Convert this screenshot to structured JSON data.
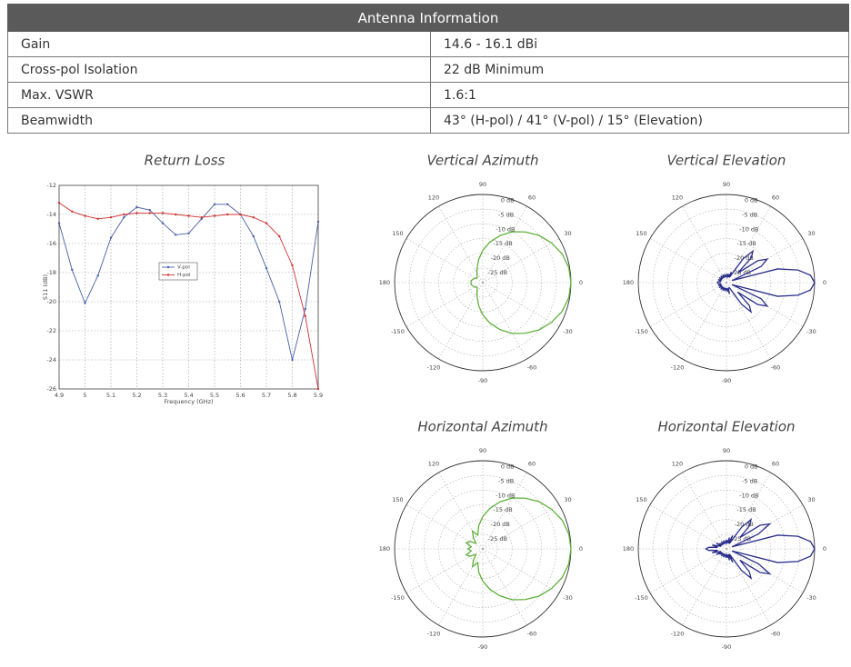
{
  "table": {
    "title": "Antenna Information",
    "rows": [
      [
        "Gain",
        "14.6 - 16.1 dBi"
      ],
      [
        "Cross-pol Isolation",
        "22 dB Minimum"
      ],
      [
        "Max. VSWR",
        "1.6:1"
      ],
      [
        "Beamwidth",
        "43° (H-pol) / 41° (V-pol) / 15° (Elevation)"
      ]
    ]
  },
  "chart_data": [
    {
      "type": "line",
      "title": "Return Loss",
      "x_label": "Frequency (GHz)",
      "y_label": "S11 (dB)",
      "x": [
        4.9,
        4.95,
        5,
        5.05,
        5.1,
        5.15,
        5.2,
        5.25,
        5.3,
        5.35,
        5.4,
        5.45,
        5.5,
        5.55,
        5.6,
        5.65,
        5.7,
        5.75,
        5.8,
        5.85,
        5.9
      ],
      "series": [
        {
          "name": "V-pol",
          "color": "#4a5fa8",
          "values": [
            -14.6,
            -17.8,
            -20.1,
            -18.2,
            -15.6,
            -14.2,
            -13.5,
            -13.7,
            -14.6,
            -15.4,
            -15.3,
            -14.3,
            -13.3,
            -13.3,
            -14.0,
            -15.5,
            -17.7,
            -20.0,
            -24.0,
            -20.5,
            -14.5
          ]
        },
        {
          "name": "H-pol",
          "color": "#d03030",
          "values": [
            -13.2,
            -13.8,
            -14.1,
            -14.3,
            -14.2,
            -14.0,
            -13.9,
            -13.9,
            -13.9,
            -14.0,
            -14.1,
            -14.2,
            -14.1,
            -14.0,
            -14.0,
            -14.2,
            -14.6,
            -15.5,
            -17.5,
            -21.0,
            -26.0
          ]
        }
      ],
      "xlim": [
        4.9,
        5.9
      ],
      "xticks": [
        4.9,
        5,
        5.1,
        5.2,
        5.3,
        5.4,
        5.5,
        5.6,
        5.7,
        5.8,
        5.9
      ],
      "ylim": [
        -26,
        -12
      ],
      "yticks": [
        -12,
        -14,
        -16,
        -18,
        -20,
        -22,
        -24,
        -26
      ],
      "grid": true
    },
    {
      "type": "polar",
      "title": "Vertical Azimuth",
      "color": "#5fb03a",
      "theta": [
        0,
        10,
        20,
        30,
        40,
        50,
        60,
        70,
        80,
        90,
        100,
        110,
        120,
        130,
        140,
        150,
        160,
        170,
        180,
        190,
        200,
        210,
        220,
        230,
        240,
        250,
        260,
        270,
        280,
        290,
        300,
        310,
        320,
        330,
        340,
        350
      ],
      "values": [
        0,
        -0.3,
        -1.3,
        -3,
        -5,
        -7.5,
        -10,
        -13,
        -16,
        -19,
        -22,
        -24.5,
        -26,
        -27,
        -27.5,
        -27,
        -26.5,
        -26,
        -26,
        -26,
        -26.5,
        -27,
        -27.5,
        -27,
        -26,
        -24.5,
        -22,
        -19,
        -16,
        -13,
        -10,
        -7.5,
        -5,
        -3,
        -1.3,
        -0.3
      ],
      "rlim": [
        -30,
        0
      ],
      "rticks": [
        {
          "value": 0,
          "label": "0 dB"
        },
        {
          "value": -5,
          "label": "-5 dB"
        },
        {
          "value": -10,
          "label": "-10 dB"
        },
        {
          "value": -15,
          "label": "-15 dB"
        },
        {
          "value": -20,
          "label": "-20 dB"
        },
        {
          "value": -25,
          "label": "-25 dB"
        }
      ],
      "thetaticks": [
        0,
        30,
        60,
        90,
        120,
        150,
        180,
        -150,
        -120,
        -90,
        -60,
        -30
      ]
    },
    {
      "type": "polar",
      "title": "Vertical Elevation",
      "color": "#2b2f8a",
      "theta": [
        0,
        5,
        10,
        15,
        20,
        25,
        30,
        35,
        40,
        45,
        50,
        55,
        60,
        65,
        70,
        75,
        80,
        85,
        90,
        95,
        100,
        105,
        110,
        115,
        120,
        125,
        130,
        135,
        140,
        145,
        150,
        155,
        160,
        165,
        170,
        175,
        180,
        185,
        190,
        195,
        200,
        205,
        210,
        215,
        220,
        225,
        230,
        235,
        240,
        245,
        250,
        255,
        260,
        265,
        270,
        275,
        280,
        285,
        290,
        295,
        300,
        305,
        310,
        315,
        320,
        325,
        330,
        335,
        340,
        345,
        350,
        355
      ],
      "values": [
        0,
        -1.3,
        -5.3,
        -12,
        -28,
        -17,
        -14,
        -17,
        -25,
        -18,
        -16,
        -20,
        -28,
        -26,
        -28,
        -27,
        -28,
        -27,
        -28,
        -28,
        -27,
        -28,
        -28,
        -27,
        -28,
        -28,
        -27,
        -28,
        -28,
        -27,
        -28,
        -28,
        -27,
        -28,
        -28,
        -27,
        -27,
        -27,
        -28,
        -28,
        -27,
        -28,
        -28,
        -27,
        -28,
        -28,
        -27,
        -28,
        -28,
        -27,
        -28,
        -28,
        -27,
        -28,
        -28,
        -27,
        -28,
        -26,
        -28,
        -28,
        -28,
        -21,
        -17,
        -19,
        -25,
        -17,
        -14,
        -17,
        -28,
        -12,
        -5.3,
        -1.3
      ],
      "rlim": [
        -30,
        0
      ],
      "rticks": [
        {
          "value": 0,
          "label": "0 dB"
        },
        {
          "value": -5,
          "label": "-5 dB"
        },
        {
          "value": -10,
          "label": "-10 dB"
        },
        {
          "value": -15,
          "label": "-15 dB"
        },
        {
          "value": -20,
          "label": "-20 dB"
        },
        {
          "value": -25,
          "label": "-25 dB"
        }
      ],
      "thetaticks": [
        0,
        30,
        60,
        90,
        120,
        150,
        180,
        -150,
        -120,
        -90,
        -60,
        -30
      ]
    },
    {
      "type": "polar",
      "title": "Horizontal Azimuth",
      "color": "#5fb03a",
      "theta": [
        0,
        10,
        20,
        30,
        40,
        50,
        60,
        70,
        80,
        90,
        100,
        110,
        120,
        130,
        140,
        150,
        160,
        170,
        180,
        190,
        200,
        210,
        220,
        230,
        240,
        250,
        260,
        270,
        280,
        290,
        300,
        310,
        320,
        330,
        340,
        350
      ],
      "values": [
        0,
        -0.3,
        -1.3,
        -3,
        -5,
        -7.5,
        -10,
        -13,
        -16,
        -19,
        -22,
        -25,
        -23,
        -25,
        -27,
        -25,
        -24,
        -26,
        -25,
        -26,
        -24,
        -25,
        -27,
        -25,
        -23,
        -25,
        -22,
        -19,
        -16,
        -13,
        -10,
        -7.5,
        -5,
        -3,
        -1.3,
        -0.3
      ],
      "rlim": [
        -30,
        0
      ],
      "rticks": [
        {
          "value": 0,
          "label": "0 dB"
        },
        {
          "value": -5,
          "label": "-5 dB"
        },
        {
          "value": -10,
          "label": "-10 dB"
        },
        {
          "value": -15,
          "label": "-15 dB"
        },
        {
          "value": -20,
          "label": "-20 dB"
        },
        {
          "value": -25,
          "label": "-25 dB"
        }
      ],
      "thetaticks": [
        0,
        30,
        60,
        90,
        120,
        150,
        180,
        -150,
        -120,
        -90,
        -60,
        -30
      ]
    },
    {
      "type": "polar",
      "title": "Horizontal Elevation",
      "color": "#2b2f8a",
      "theta": [
        0,
        5,
        10,
        15,
        20,
        25,
        30,
        35,
        40,
        45,
        50,
        55,
        60,
        65,
        70,
        75,
        80,
        85,
        90,
        95,
        100,
        105,
        110,
        115,
        120,
        125,
        130,
        135,
        140,
        145,
        150,
        155,
        160,
        165,
        170,
        175,
        180,
        185,
        190,
        195,
        200,
        205,
        210,
        215,
        220,
        225,
        230,
        235,
        240,
        245,
        250,
        255,
        260,
        265,
        270,
        275,
        280,
        285,
        290,
        295,
        300,
        305,
        310,
        315,
        320,
        325,
        330,
        335,
        340,
        345,
        350,
        355
      ],
      "values": [
        0,
        -1.3,
        -5.3,
        -12,
        -28,
        -18,
        -13,
        -16,
        -24,
        -19,
        -17,
        -21,
        -28,
        -25,
        -28,
        -26,
        -28,
        -27,
        -28,
        -27,
        -28,
        -28,
        -27,
        -28,
        -28,
        -27,
        -28,
        -28,
        -27,
        -28,
        -26,
        -28,
        -27,
        -25,
        -27,
        -24,
        -23,
        -24,
        -27,
        -25,
        -27,
        -28,
        -26,
        -28,
        -27,
        -28,
        -28,
        -27,
        -28,
        -28,
        -27,
        -28,
        -28,
        -27,
        -28,
        -27,
        -28,
        -26,
        -28,
        -25,
        -28,
        -21,
        -17,
        -19,
        -24,
        -16,
        -13,
        -18,
        -28,
        -12,
        -5.3,
        -1.3
      ],
      "rlim": [
        -30,
        0
      ],
      "rticks": [
        {
          "value": 0,
          "label": "0 dB"
        },
        {
          "value": -5,
          "label": "-5 dB"
        },
        {
          "value": -10,
          "label": "-10 dB"
        },
        {
          "value": -15,
          "label": "-15 dB"
        },
        {
          "value": -20,
          "label": "-20 dB"
        },
        {
          "value": -25,
          "label": "-25 dB"
        }
      ],
      "thetaticks": [
        0,
        30,
        60,
        90,
        120,
        150,
        180,
        -150,
        -120,
        -90,
        -60,
        -30
      ]
    }
  ]
}
